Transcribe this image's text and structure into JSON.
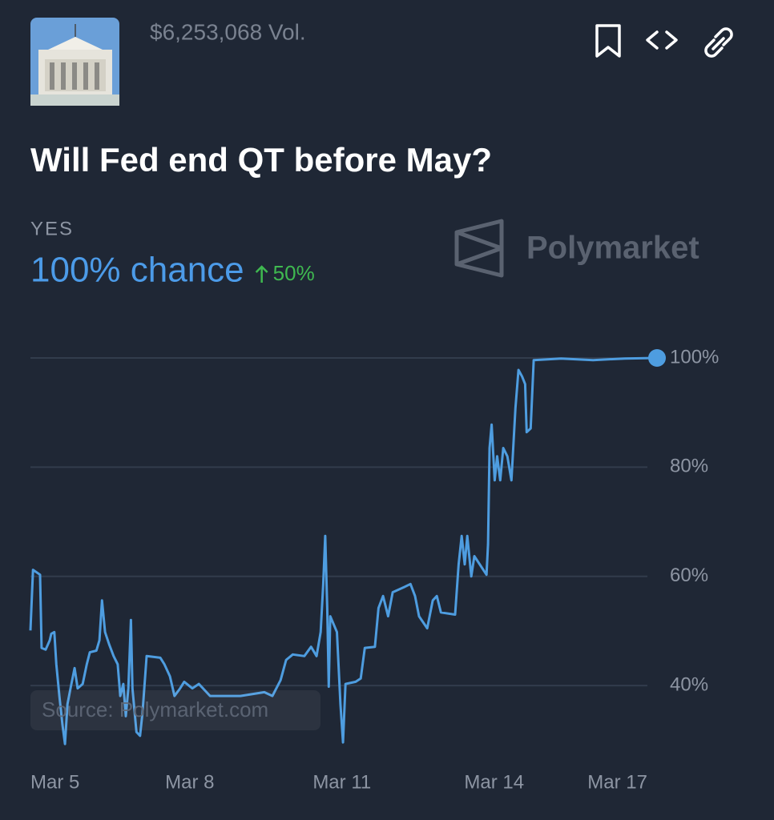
{
  "header": {
    "volume": "$6,253,068 Vol.",
    "title": "Will Fed end QT before May?",
    "outcome": "YES",
    "chance": "100% chance",
    "change": "50%",
    "watermark": "Polymarket"
  },
  "chart_data": {
    "type": "line",
    "source": "Source: Polymarket.com",
    "color": "#4e9de0",
    "x": [
      4.86,
      4.91,
      5.05,
      5.08,
      5.16,
      5.24,
      5.27,
      5.33,
      5.37,
      5.43,
      5.49,
      5.54,
      5.59,
      5.65,
      5.73,
      5.79,
      5.89,
      5.97,
      6.03,
      6.16,
      6.22,
      6.27,
      6.33,
      6.41,
      6.5,
      6.58,
      6.63,
      6.69,
      6.74,
      6.79,
      6.84,
      6.87,
      6.95,
      7.02,
      7.07,
      7.15,
      7.42,
      7.5,
      7.61,
      7.7,
      7.81,
      7.89,
      8.05,
      8.18,
      8.4,
      9.0,
      9.47,
      9.63,
      9.79,
      9.9,
      10.03,
      10.26,
      10.39,
      10.5,
      10.58,
      10.63,
      10.67,
      10.71,
      10.74,
      10.77,
      10.9,
      10.97,
      11.02,
      11.07,
      11.27,
      11.37,
      11.45,
      11.65,
      11.72,
      11.81,
      11.91,
      12.0,
      12.24,
      12.35,
      12.44,
      12.52,
      12.68,
      12.79,
      12.87,
      12.95,
      13.23,
      13.3,
      13.36,
      13.42,
      13.47,
      13.55,
      13.61,
      13.85,
      13.88,
      13.91,
      13.95,
      14.01,
      14.06,
      14.12,
      14.18,
      14.26,
      14.34,
      14.42,
      14.48,
      14.55,
      14.61,
      14.64,
      14.72,
      14.78,
      15.32,
      15.95,
      16.58,
      17.21
    ],
    "values": [
      50.1,
      61.2,
      60.3,
      46.9,
      46.6,
      48.3,
      49.5,
      49.8,
      43.9,
      38.1,
      32.9,
      29.3,
      36.6,
      39.5,
      43.2,
      39.5,
      40.3,
      43.9,
      46.1,
      46.4,
      48.3,
      55.6,
      49.8,
      47.6,
      45.4,
      43.9,
      38.1,
      40.3,
      34.4,
      39.5,
      52.0,
      39.5,
      31.5,
      30.8,
      35.1,
      45.4,
      45.1,
      43.9,
      41.7,
      38.1,
      39.5,
      40.7,
      39.5,
      40.3,
      38.1,
      38.1,
      38.8,
      38.1,
      41.0,
      44.7,
      45.7,
      45.4,
      47.1,
      45.4,
      49.8,
      58.6,
      67.4,
      54.2,
      39.8,
      52.7,
      49.8,
      36.6,
      29.6,
      40.3,
      40.7,
      41.3,
      46.9,
      47.1,
      54.2,
      56.4,
      52.7,
      57.1,
      58.1,
      58.6,
      56.4,
      52.7,
      50.5,
      55.6,
      56.4,
      53.4,
      53.0,
      62.2,
      67.4,
      62.2,
      67.4,
      60.0,
      63.7,
      60.3,
      65.9,
      83.5,
      87.8,
      77.6,
      82.0,
      77.6,
      83.5,
      82.0,
      77.6,
      90.8,
      97.8,
      96.6,
      95.2,
      86.4,
      87.1,
      99.6,
      99.9,
      99.6,
      99.9,
      100
    ],
    "xlim": [
      4.86,
      17.21
    ],
    "xticks": [
      {
        "value": 5,
        "label": "Mar 5"
      },
      {
        "value": 8,
        "label": "Mar 8"
      },
      {
        "value": 11,
        "label": "Mar 11"
      },
      {
        "value": 14,
        "label": "Mar 14"
      },
      {
        "value": 17,
        "label": "Mar 17"
      }
    ],
    "ylim": [
      28,
      100
    ],
    "yticks": [
      {
        "value": 40,
        "label": "40%"
      },
      {
        "value": 60,
        "label": "60%"
      },
      {
        "value": 80,
        "label": "80%"
      },
      {
        "value": 100,
        "label": "100%"
      }
    ],
    "grid": true
  }
}
